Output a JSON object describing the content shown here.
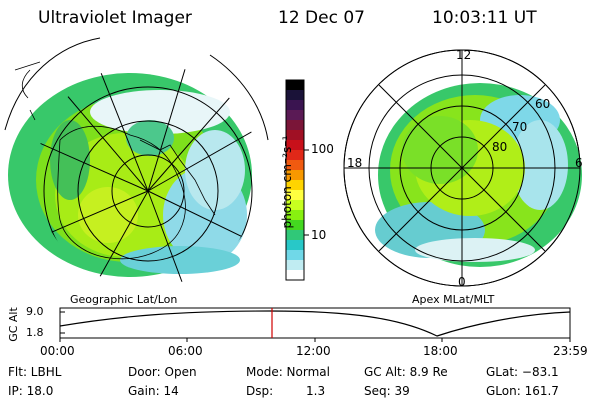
{
  "header": {
    "instrument": "Ultraviolet Imager",
    "date": "12 Dec 07",
    "time": "10:03:11 UT"
  },
  "colorbar": {
    "unit_label": "photon cm⁻²s⁻¹",
    "tick_labels": [
      "100",
      "10"
    ],
    "colors": [
      "#000000",
      "#1a1238",
      "#3a1450",
      "#5a1a55",
      "#7a1538",
      "#a01024",
      "#c8101a",
      "#e02818",
      "#f05a10",
      "#f79800",
      "#ffd400",
      "#ffff40",
      "#c8ff20",
      "#88f010",
      "#44d820",
      "#30c878",
      "#28c8c8",
      "#70d8e8",
      "#c0ecf2",
      "#ffffff"
    ]
  },
  "left_map": {
    "caption": "Geographic Lat/Lon"
  },
  "right_map": {
    "caption": "Apex MLat/MLT",
    "mlt_labels": {
      "top": "12",
      "right": "6",
      "bottom": "0",
      "left": "18"
    },
    "lat_labels": [
      "60",
      "70",
      "80"
    ]
  },
  "altitude_plot": {
    "ylabel": "GC Alt",
    "ytick_labels": [
      "9.0",
      "1.8"
    ],
    "xtick_labels": [
      "00:00",
      "06:00",
      "12:00",
      "18:00",
      "23:59"
    ],
    "marker_color": "#d00000",
    "line_color": "#000000"
  },
  "footer": {
    "row1": {
      "flt": "Flt: LBHL",
      "door": "Door: Open",
      "mode": "Mode: Normal",
      "gcalt": "GC Alt: 8.9 Re",
      "glat": "GLat: −83.1"
    },
    "row2": {
      "ip": "IP: 18.0",
      "gain": "Gain: 14",
      "dsp": "Dsp:",
      "dsp_val": "1.3",
      "seq": "Seq: 39",
      "glon": "GLon: 161.7"
    }
  }
}
